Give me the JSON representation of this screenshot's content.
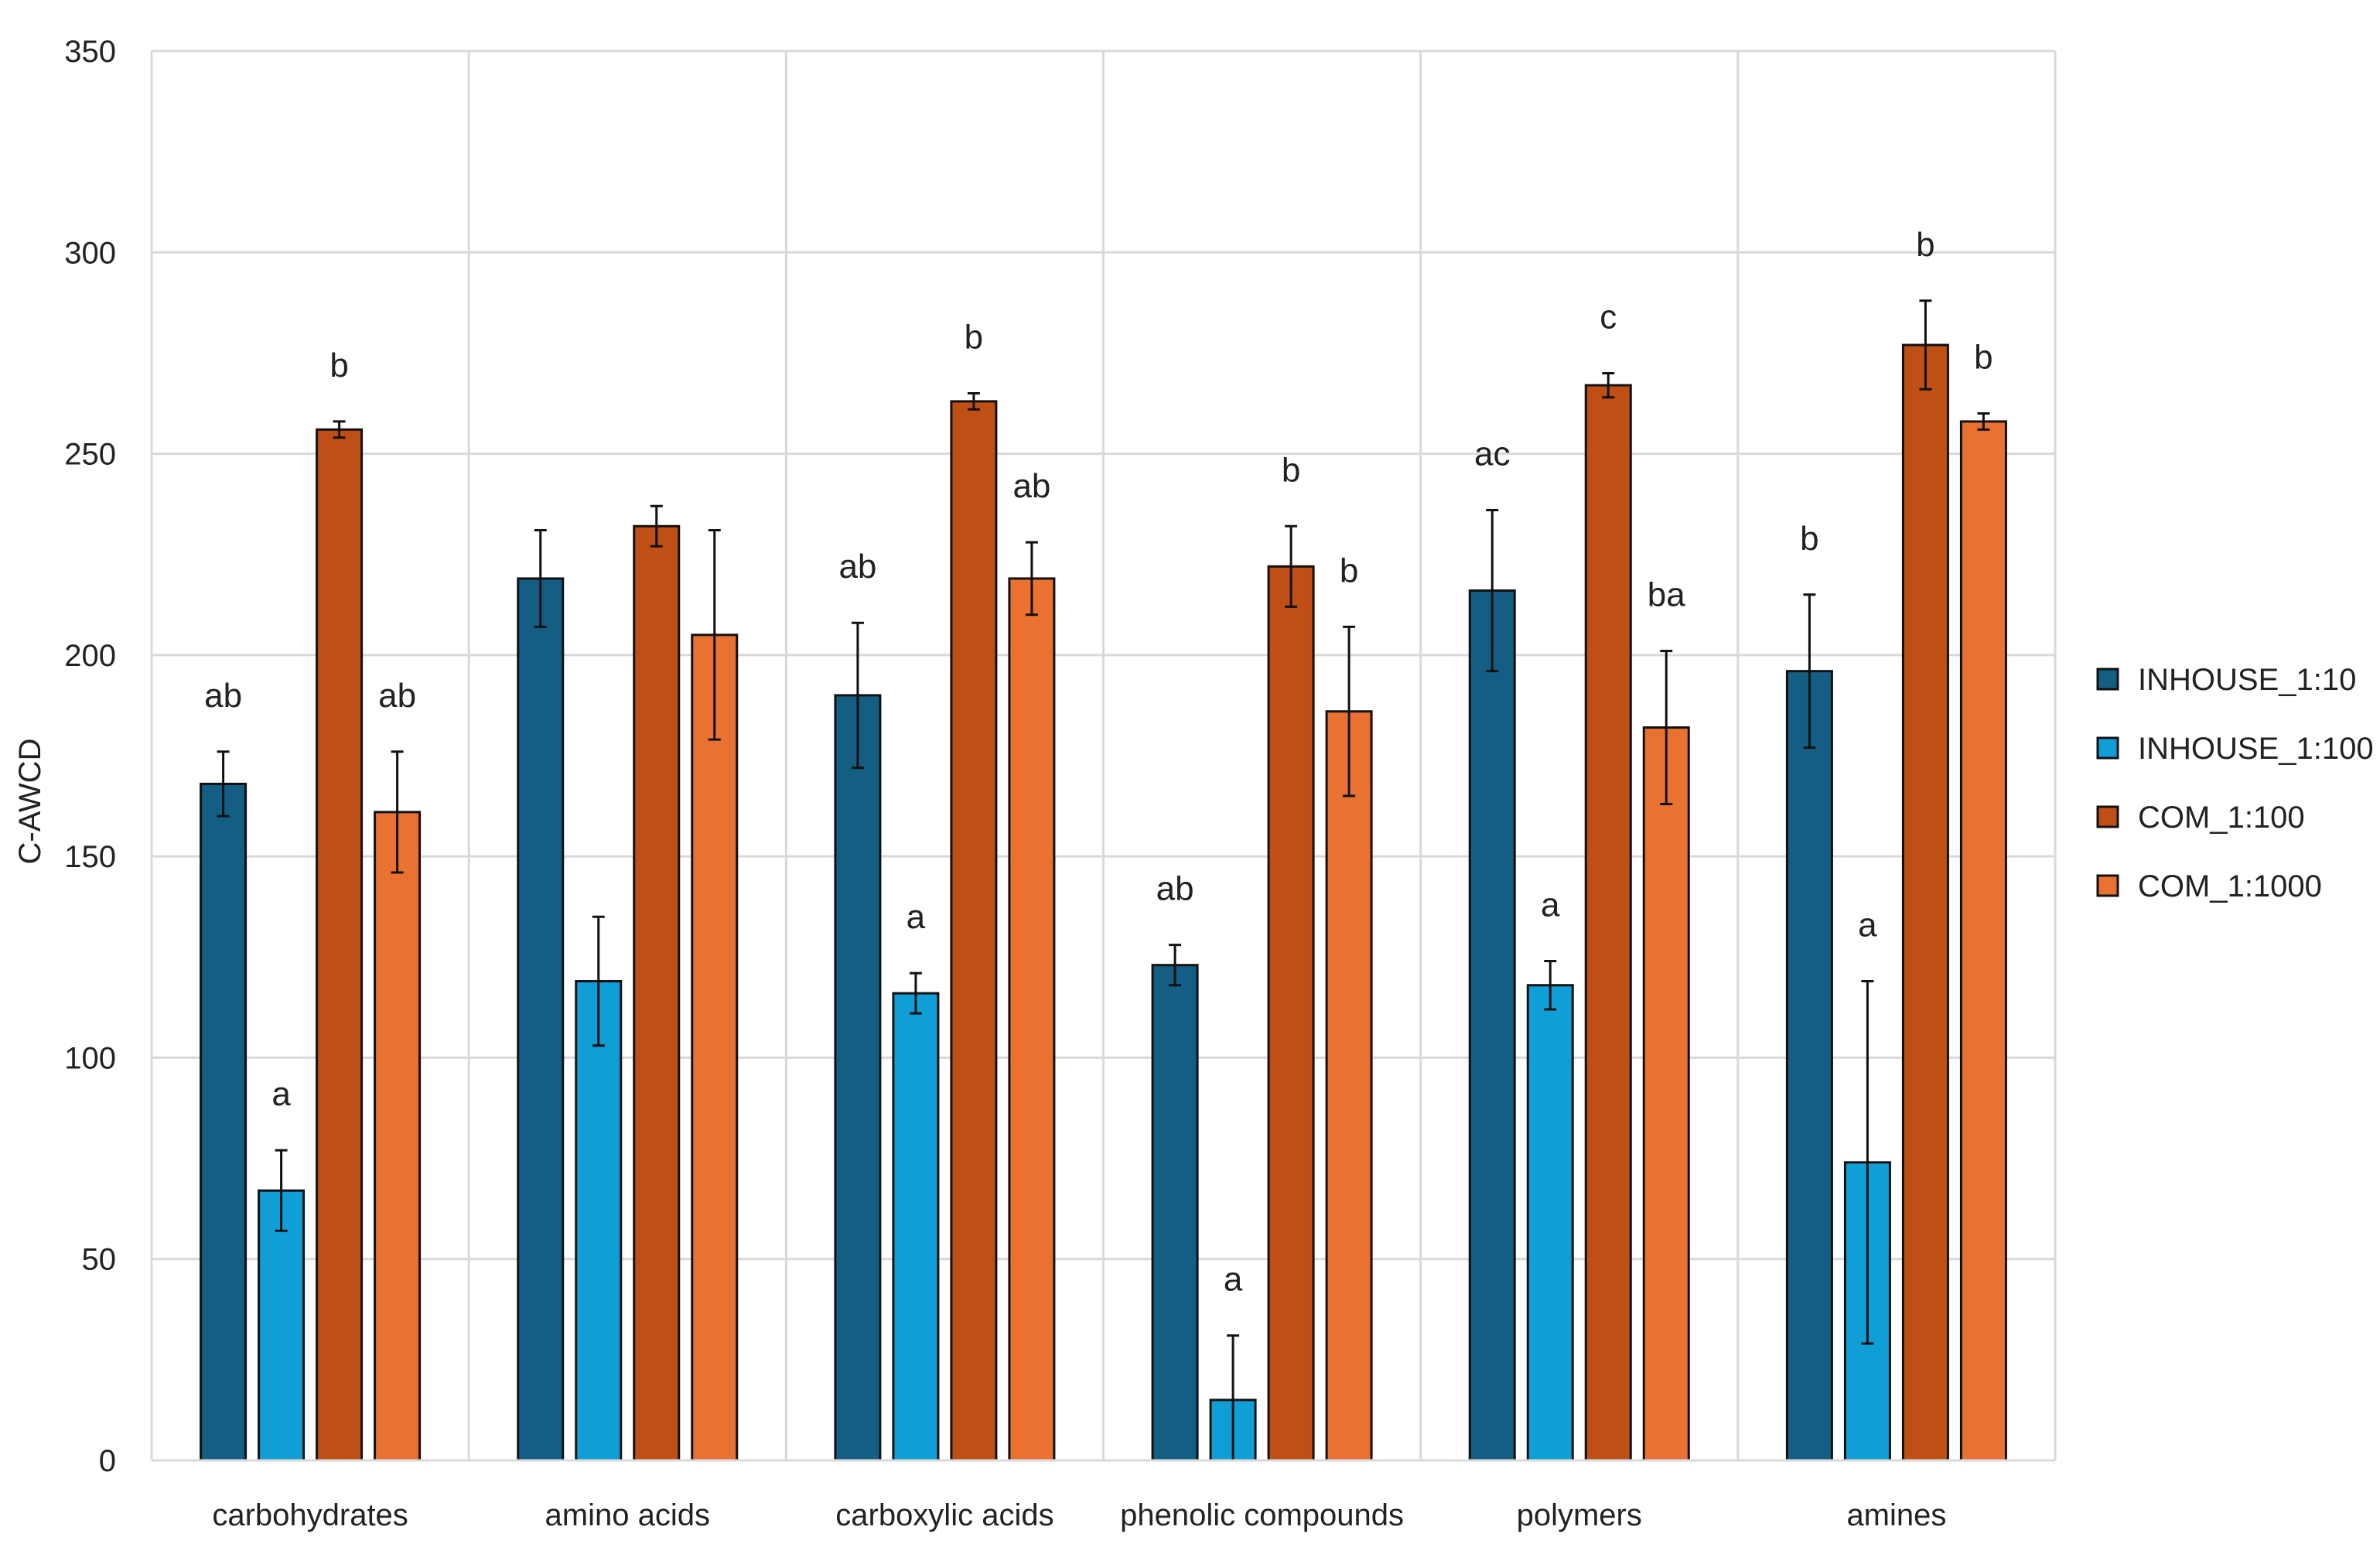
{
  "chart_data": {
    "type": "bar",
    "title": "",
    "xlabel": "",
    "ylabel": "C-AWCD",
    "ylim": [
      0,
      350
    ],
    "yticks": [
      0,
      50,
      100,
      150,
      200,
      250,
      300,
      350
    ],
    "grid": true,
    "legend_position": "right",
    "categories": [
      "carbohydrates",
      "amino acids",
      "carboxylic acids",
      "phenolic compounds",
      "polymers",
      "amines"
    ],
    "series": [
      {
        "name": "INHOUSE_1:10",
        "color": "#135E82",
        "values": [
          168,
          219,
          190,
          123,
          216,
          196
        ],
        "errors": [
          8,
          12,
          18,
          5,
          20,
          19
        ],
        "labels": [
          "ab",
          "",
          "ab",
          "ab",
          "ac",
          "b"
        ]
      },
      {
        "name": "INHOUSE_1:100",
        "color": "#0F9ED5",
        "values": [
          67,
          119,
          116,
          15,
          118,
          74
        ],
        "errors": [
          10,
          16,
          5,
          16,
          6,
          45
        ],
        "labels": [
          "a",
          "",
          "a",
          "a",
          "a",
          "a"
        ]
      },
      {
        "name": "COM_1:100",
        "color": "#C04F16",
        "values": [
          256,
          232,
          263,
          222,
          267,
          277
        ],
        "errors": [
          2,
          5,
          2,
          10,
          3,
          11
        ],
        "labels": [
          "b",
          "",
          "b",
          "b",
          "c",
          "b"
        ]
      },
      {
        "name": "COM_1:1000",
        "color": "#E97132",
        "values": [
          161,
          205,
          219,
          186,
          182,
          258
        ],
        "errors": [
          15,
          26,
          9,
          21,
          19,
          2
        ],
        "labels": [
          "ab",
          "",
          "ab",
          "b",
          "ba",
          "b"
        ]
      }
    ]
  }
}
